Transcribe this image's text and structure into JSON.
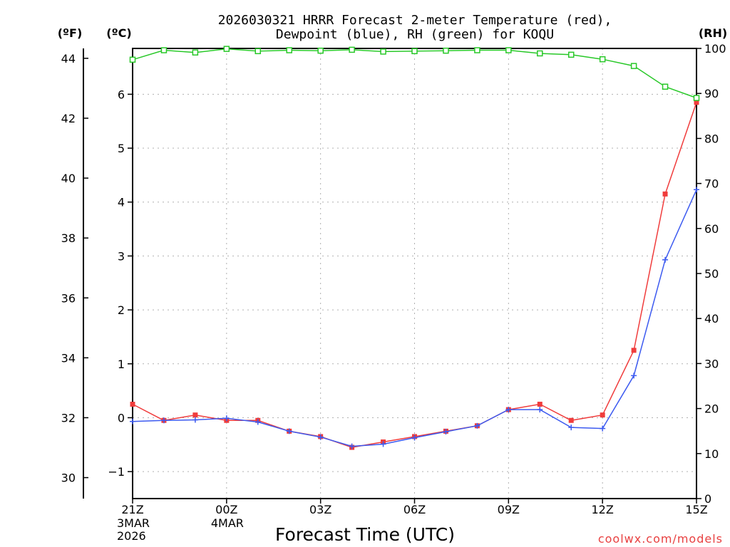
{
  "chart_data": {
    "type": "line",
    "title": "2026030321 HRRR Forecast 2-meter Temperature (red),",
    "subtitle": "Dewpoint (blue), RH (green) for KOQU",
    "xlabel": "Forecast Time (UTC)",
    "credit": "coolwx.com/models",
    "unit_labels": {
      "fahrenheit": "(ºF)",
      "celsius": "(ºC)",
      "rh": "(RH)"
    },
    "x": [
      0,
      1,
      2,
      3,
      4,
      5,
      6,
      7,
      8,
      9,
      10,
      11,
      12,
      13,
      14,
      15,
      16,
      17,
      18
    ],
    "x_ticks": [
      {
        "x": 0,
        "label": "21Z",
        "date": "3MAR",
        "year": "2026"
      },
      {
        "x": 3,
        "label": "00Z",
        "date": "4MAR",
        "year": ""
      },
      {
        "x": 6,
        "label": "03Z",
        "date": "",
        "year": ""
      },
      {
        "x": 9,
        "label": "06Z",
        "date": "",
        "year": ""
      },
      {
        "x": 12,
        "label": "09Z",
        "date": "",
        "year": ""
      },
      {
        "x": 15,
        "label": "12Z",
        "date": "",
        "year": ""
      },
      {
        "x": 18,
        "label": "15Z",
        "date": "",
        "year": ""
      }
    ],
    "ylim_celsius": [
      -1.5,
      6.85
    ],
    "celsius_ticks": [
      "-1",
      "0",
      "1",
      "2",
      "3",
      "4",
      "5",
      "6"
    ],
    "fahrenheit_ticks": [
      "30",
      "32",
      "34",
      "36",
      "38",
      "40",
      "42",
      "44"
    ],
    "ylim_rh": [
      0,
      100
    ],
    "rh_ticks": [
      "0",
      "10",
      "20",
      "30",
      "40",
      "50",
      "60",
      "70",
      "80",
      "90",
      "100"
    ],
    "series": [
      {
        "name": "Temperature",
        "axis": "celsius",
        "color": "#f03c3c",
        "marker": "square-filled",
        "values": [
          0.25,
          -0.05,
          0.05,
          -0.05,
          -0.05,
          -0.25,
          -0.35,
          -0.55,
          -0.45,
          -0.35,
          -0.25,
          -0.15,
          0.15,
          0.25,
          -0.05,
          0.05,
          1.25,
          4.15,
          5.85
        ]
      },
      {
        "name": "Dewpoint",
        "axis": "celsius",
        "color": "#3c5af0",
        "marker": "plus",
        "values": [
          -0.07,
          -0.05,
          -0.04,
          -0.01,
          -0.08,
          -0.25,
          -0.36,
          -0.53,
          -0.49,
          -0.37,
          -0.26,
          -0.15,
          0.15,
          0.15,
          -0.18,
          -0.2,
          0.78,
          2.93,
          4.23
        ]
      },
      {
        "name": "RH",
        "axis": "rh",
        "color": "#28c828",
        "marker": "square-open",
        "values": [
          97.5,
          99.6,
          99.1,
          99.9,
          99.4,
          99.6,
          99.5,
          99.7,
          99.3,
          99.4,
          99.5,
          99.6,
          99.6,
          98.9,
          98.6,
          97.6,
          96.1,
          91.5,
          89.0
        ]
      }
    ]
  }
}
